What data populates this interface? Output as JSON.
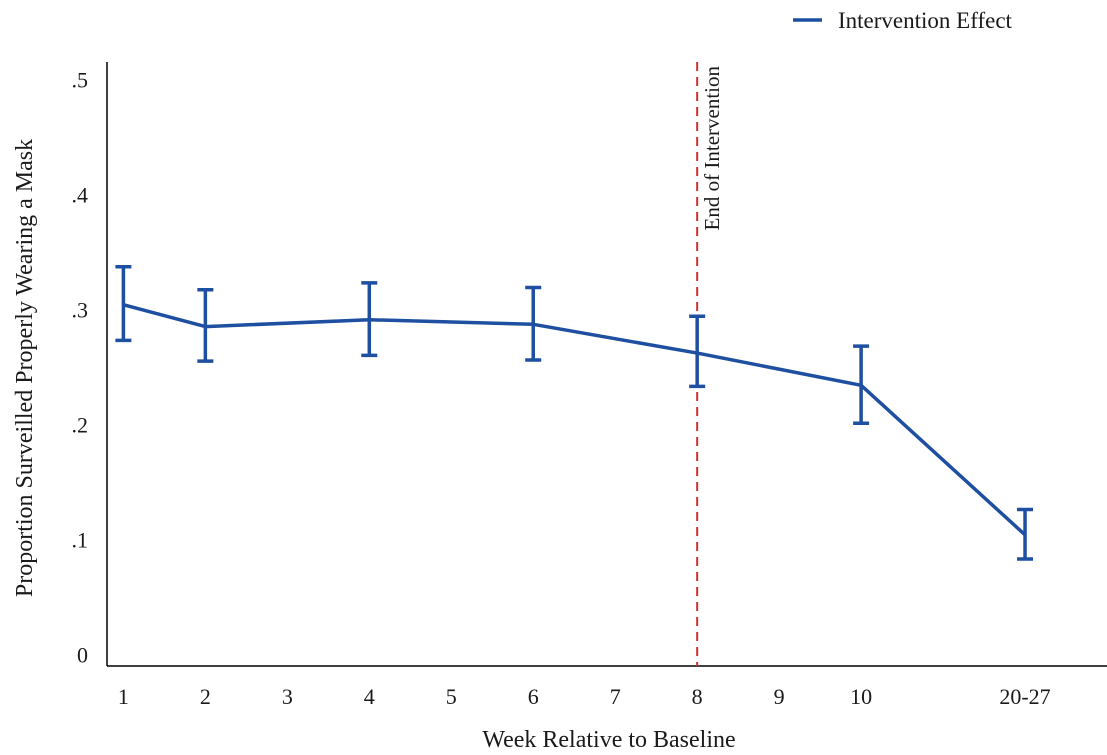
{
  "chart_data": {
    "type": "line",
    "title": "",
    "xlabel": "Week Relative to Baseline",
    "ylabel": "Proportion Surveilled Properly Wearing a Mask",
    "x_ticks": [
      {
        "pos": 1,
        "label": "1"
      },
      {
        "pos": 2,
        "label": "2"
      },
      {
        "pos": 3,
        "label": "3"
      },
      {
        "pos": 4,
        "label": "4"
      },
      {
        "pos": 5,
        "label": "5"
      },
      {
        "pos": 6,
        "label": "6"
      },
      {
        "pos": 7,
        "label": "7"
      },
      {
        "pos": 8,
        "label": "8"
      },
      {
        "pos": 9,
        "label": "9"
      },
      {
        "pos": 10,
        "label": "10"
      },
      {
        "pos": 12,
        "label": "20-27"
      }
    ],
    "xlim": [
      0.8,
      13.0
    ],
    "y_ticks": [
      {
        "value": 0,
        "label": "0"
      },
      {
        "value": 0.1,
        "label": ".1"
      },
      {
        "value": 0.2,
        "label": ".2"
      },
      {
        "value": 0.3,
        "label": ".3"
      },
      {
        "value": 0.4,
        "label": ".4"
      },
      {
        "value": 0.5,
        "label": ".5"
      }
    ],
    "ylim": [
      -0.01,
      0.515
    ],
    "grid": false,
    "legend": {
      "position": "top-right",
      "entries": [
        "Intervention Effect"
      ]
    },
    "series": [
      {
        "name": "Intervention Effect",
        "color": "#1f4fa0",
        "points": [
          {
            "x": 1,
            "label": "1",
            "y": 0.304,
            "lo": 0.273,
            "hi": 0.337
          },
          {
            "x": 2,
            "label": "2",
            "y": 0.285,
            "lo": 0.255,
            "hi": 0.317
          },
          {
            "x": 4,
            "label": "4",
            "y": 0.291,
            "lo": 0.26,
            "hi": 0.323
          },
          {
            "x": 6,
            "label": "6",
            "y": 0.287,
            "lo": 0.256,
            "hi": 0.319
          },
          {
            "x": 8,
            "label": "8",
            "y": 0.262,
            "lo": 0.233,
            "hi": 0.294
          },
          {
            "x": 10,
            "label": "10",
            "y": 0.234,
            "lo": 0.201,
            "hi": 0.268
          },
          {
            "x": 12,
            "label": "20-27",
            "y": 0.104,
            "lo": 0.083,
            "hi": 0.126
          }
        ]
      }
    ],
    "annotations": [
      {
        "type": "vline",
        "x": 8,
        "text": "End of Intervention",
        "color": "#d0312d",
        "style": "dashed"
      }
    ]
  }
}
